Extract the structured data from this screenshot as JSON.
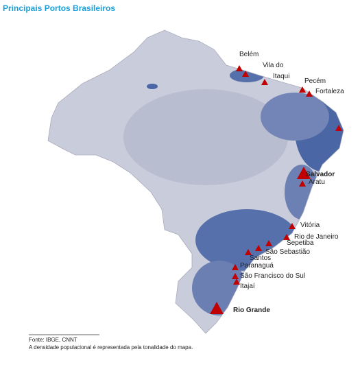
{
  "title": "Principais Portos Brasileiros",
  "ports": [
    {
      "label": "Belém"
    },
    {
      "label": "Vila do"
    },
    {
      "label": "Itaqui"
    },
    {
      "label": "Pecém"
    },
    {
      "label": "Fortaleza"
    },
    {
      "label": "Salvador"
    },
    {
      "label": "Aratu"
    },
    {
      "label": "Vitória"
    },
    {
      "label": "Rio de Janeiro"
    },
    {
      "label": "Sepetiba"
    },
    {
      "label": "São Sebastião"
    },
    {
      "label": "Santos"
    },
    {
      "label": "Paranaguá"
    },
    {
      "label": "São Francisco do Sul"
    },
    {
      "label": "Itajaí"
    },
    {
      "label": "Rio Grande"
    }
  ],
  "source": "Fonte: IBGE, CNNT",
  "note": "A densidade populacional é representada pela tonalidade do mapa."
}
